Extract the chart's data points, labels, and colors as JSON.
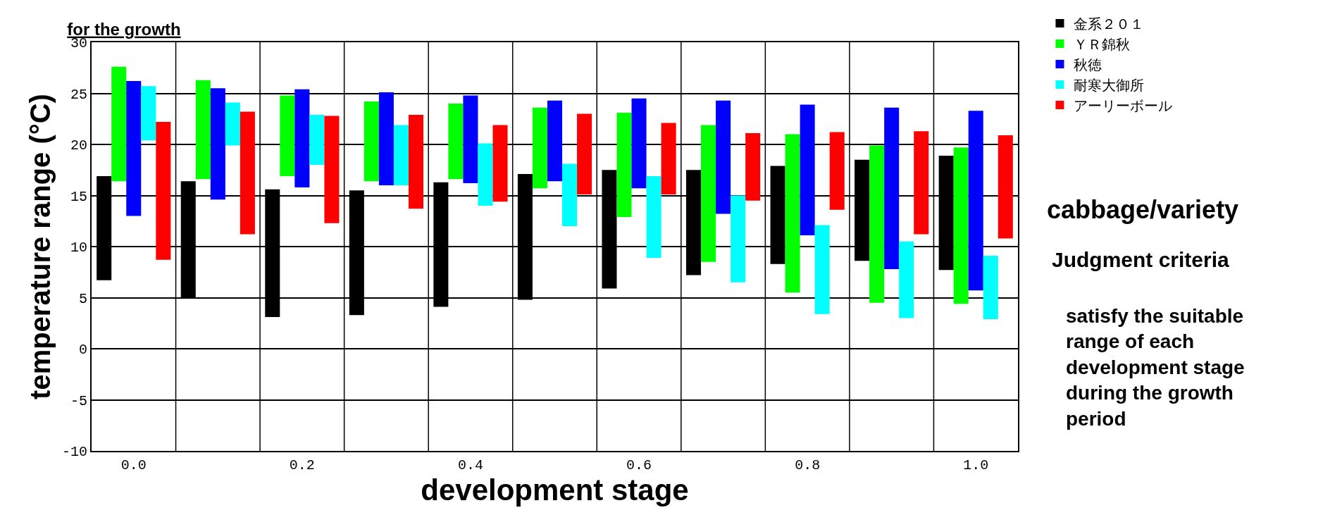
{
  "chart_data": {
    "type": "bar",
    "title": "for the growth",
    "xlabel": "development stage",
    "ylabel": "temperature range (°C)",
    "categories": [
      "0.0",
      null,
      "0.2",
      null,
      "0.4",
      null,
      "0.6",
      null,
      "0.8",
      null,
      "1.0"
    ],
    "series": [
      {
        "name": "金系２０１",
        "color": "#000000",
        "base": [
          6.7,
          4.9,
          3.1,
          3.3,
          4.1,
          4.8,
          5.9,
          7.2,
          8.3,
          8.6,
          7.7
        ],
        "values": [
          10.2,
          11.5,
          12.5,
          12.2,
          12.2,
          12.3,
          11.6,
          10.3,
          9.6,
          9.9,
          11.2
        ]
      },
      {
        "name": "ＹＲ錦秋",
        "color": "#00ff00",
        "base": [
          16.4,
          16.6,
          16.9,
          16.4,
          16.6,
          15.7,
          12.9,
          8.5,
          5.5,
          4.5,
          4.4
        ],
        "values": [
          11.2,
          9.7,
          7.9,
          7.8,
          7.4,
          7.9,
          10.2,
          13.4,
          15.5,
          15.4,
          15.3
        ]
      },
      {
        "name": "秋徳",
        "color": "#0000ff",
        "base": [
          13.0,
          14.6,
          15.8,
          16.0,
          16.2,
          16.4,
          15.7,
          13.2,
          11.1,
          7.8,
          5.7
        ],
        "values": [
          13.2,
          10.9,
          9.6,
          9.1,
          8.6,
          7.9,
          8.8,
          11.1,
          12.8,
          15.8,
          17.6
        ]
      },
      {
        "name": "耐寒大御所",
        "color": "#00ffff",
        "base": [
          20.4,
          19.9,
          18.0,
          16.0,
          14.0,
          12.0,
          8.9,
          6.5,
          3.4,
          3.0,
          2.9
        ],
        "values": [
          5.3,
          4.2,
          4.9,
          5.9,
          6.1,
          6.1,
          8.0,
          8.5,
          8.7,
          7.5,
          6.2
        ]
      },
      {
        "name": "アーリーボール",
        "color": "#ff0000",
        "base": [
          8.7,
          11.2,
          12.3,
          13.7,
          14.4,
          15.1,
          15.1,
          14.5,
          13.6,
          11.2,
          10.8
        ],
        "values": [
          13.5,
          12.0,
          10.5,
          9.2,
          7.5,
          7.9,
          7.0,
          6.6,
          7.6,
          10.1,
          10.1
        ]
      }
    ],
    "ylim": [
      -10,
      30
    ],
    "yticks": [
      -10,
      -5,
      0,
      5,
      10,
      15,
      20,
      25,
      30
    ],
    "grid": true,
    "legend": "top right",
    "annotations": [
      "cabbage/variety",
      "Judgment criteria",
      "satisfy the suitable range of each development stage during the growth period"
    ]
  }
}
